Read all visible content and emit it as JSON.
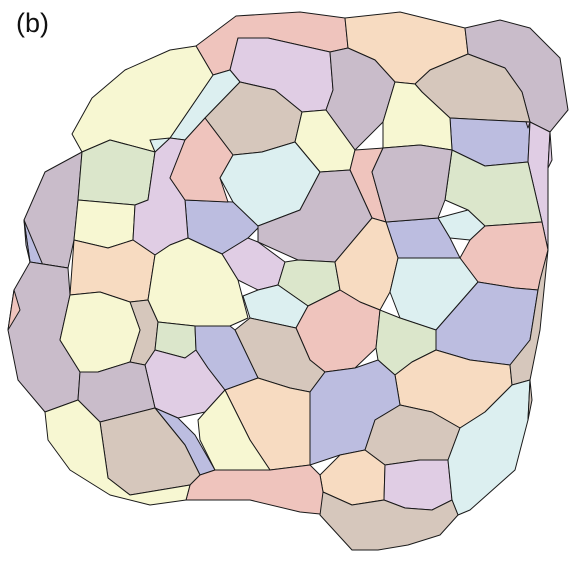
{
  "panel_label": "(b)",
  "palette": {
    "yellow": "#f7f7d2",
    "green": "#dbe6cb",
    "lavender": "#bcbde0",
    "pink": "#efc4bd",
    "mauve": "#c9bcca",
    "taupe": "#d6c7bc",
    "peach": "#f7dbc1",
    "cyan": "#dceff0",
    "lilac": "#e0cde4"
  },
  "stroke_color": "#1a1a1a",
  "cell_count": 66,
  "cells": [
    {
      "id": 1,
      "color": "pink"
    },
    {
      "id": 2,
      "color": "peach"
    },
    {
      "id": 3,
      "color": "mauve"
    },
    {
      "id": 4,
      "color": "lilac"
    },
    {
      "id": 5,
      "color": "cyan"
    },
    {
      "id": 6,
      "color": "yellow"
    },
    {
      "id": 7,
      "color": "mauve"
    },
    {
      "id": 8,
      "color": "taupe"
    },
    {
      "id": 9,
      "color": "yellow"
    },
    {
      "id": 10,
      "color": "taupe"
    },
    {
      "id": 11,
      "color": "mauve"
    },
    {
      "id": 12,
      "color": "lavender"
    },
    {
      "id": 13,
      "color": "lilac"
    },
    {
      "id": 14,
      "color": "green"
    },
    {
      "id": 15,
      "color": "lavender"
    },
    {
      "id": 16,
      "color": "yellow"
    },
    {
      "id": 17,
      "color": "lilac"
    },
    {
      "id": 18,
      "color": "pink"
    },
    {
      "id": 19,
      "color": "cyan"
    },
    {
      "id": 20,
      "color": "yellow"
    },
    {
      "id": 21,
      "color": "pink"
    },
    {
      "id": 22,
      "color": "mauve"
    },
    {
      "id": 23,
      "color": "green"
    },
    {
      "id": 24,
      "color": "cyan"
    },
    {
      "id": 25,
      "color": "lavender"
    },
    {
      "id": 26,
      "color": "mauve"
    },
    {
      "id": 27,
      "color": "lavender"
    },
    {
      "id": 28,
      "color": "pink"
    },
    {
      "id": 29,
      "color": "peach"
    },
    {
      "id": 30,
      "color": "lilac"
    },
    {
      "id": 31,
      "color": "yellow"
    },
    {
      "id": 32,
      "color": "green"
    },
    {
      "id": 33,
      "color": "cyan"
    },
    {
      "id": 34,
      "color": "peach"
    },
    {
      "id": 35,
      "color": "cyan"
    },
    {
      "id": 36,
      "color": "mauve"
    },
    {
      "id": 37,
      "color": "taupe"
    },
    {
      "id": 38,
      "color": "green"
    },
    {
      "id": 39,
      "color": "lavender"
    },
    {
      "id": 40,
      "color": "pink"
    },
    {
      "id": 41,
      "color": "taupe"
    },
    {
      "id": 42,
      "color": "lilac"
    },
    {
      "id": 43,
      "color": "green"
    },
    {
      "id": 44,
      "color": "peach"
    },
    {
      "id": 45,
      "color": "lavender"
    },
    {
      "id": 46,
      "color": "taupe"
    },
    {
      "id": 47,
      "color": "yellow"
    },
    {
      "id": 48,
      "color": "mauve"
    },
    {
      "id": 49,
      "color": "lavender"
    },
    {
      "id": 50,
      "color": "peach"
    },
    {
      "id": 51,
      "color": "lavender"
    },
    {
      "id": 52,
      "color": "taupe"
    },
    {
      "id": 53,
      "color": "peach"
    },
    {
      "id": 54,
      "color": "lilac"
    },
    {
      "id": 55,
      "color": "cyan"
    },
    {
      "id": 56,
      "color": "taupe"
    },
    {
      "id": 57,
      "color": "pink"
    },
    {
      "id": 58,
      "color": "yellow"
    },
    {
      "id": 59,
      "color": "cyan"
    },
    {
      "id": 60,
      "color": "taupe"
    },
    {
      "id": 61,
      "color": "lilac"
    },
    {
      "id": 62,
      "color": "pink"
    },
    {
      "id": 63,
      "color": "yellow"
    },
    {
      "id": 64,
      "color": "lilac"
    },
    {
      "id": 65,
      "color": "taupe"
    },
    {
      "id": 66,
      "color": "lavender"
    }
  ]
}
